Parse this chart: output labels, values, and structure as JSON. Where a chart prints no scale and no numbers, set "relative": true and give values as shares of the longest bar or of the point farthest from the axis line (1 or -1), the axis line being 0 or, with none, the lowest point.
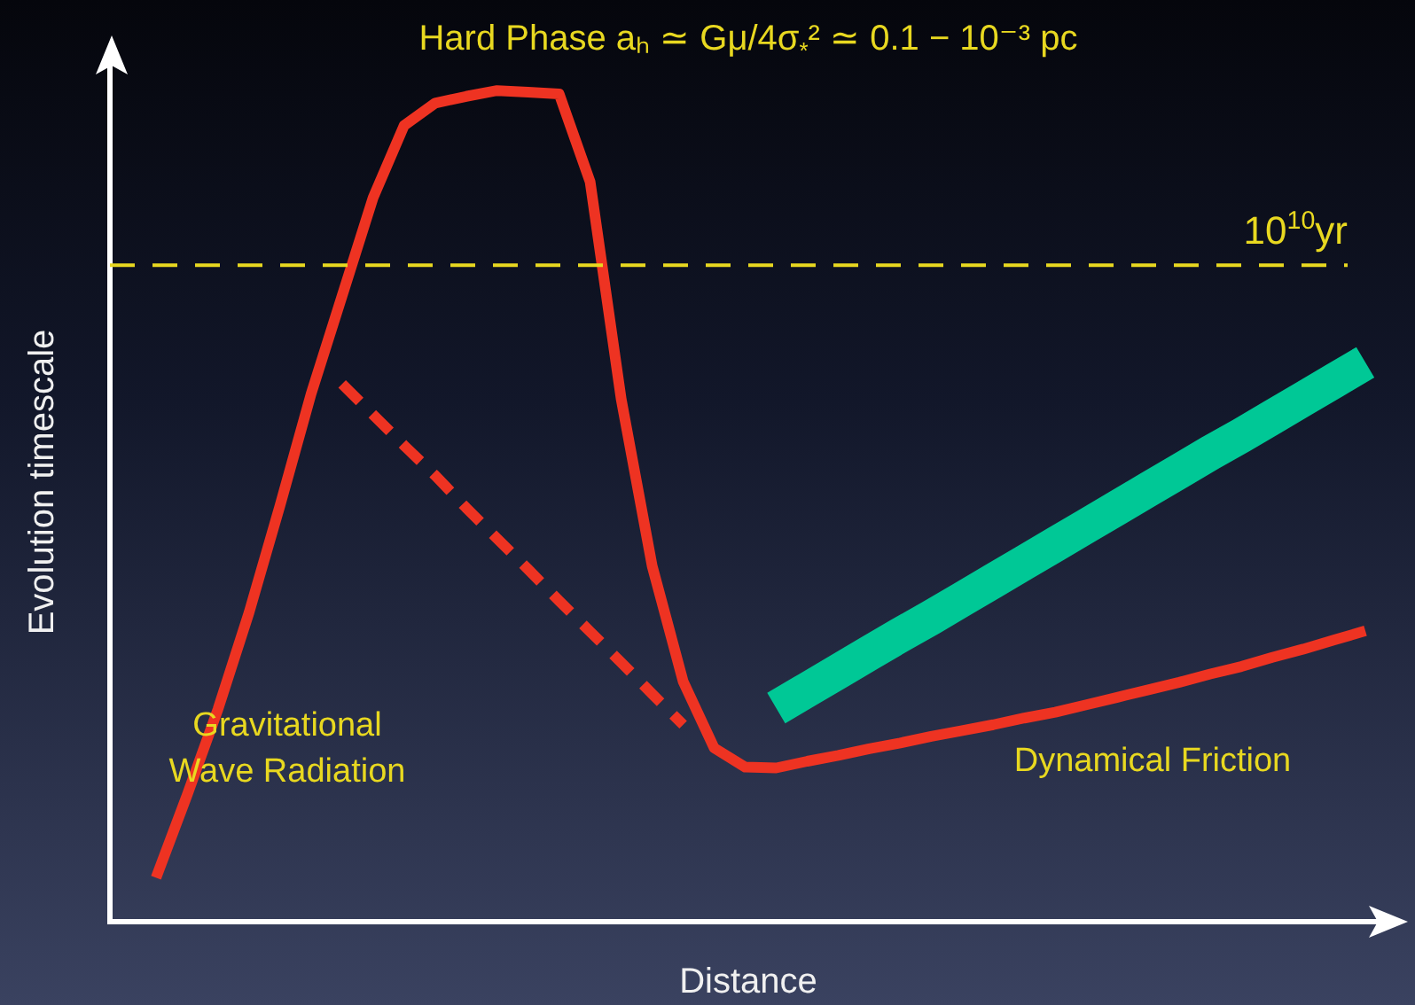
{
  "chart_data": {
    "type": "line",
    "relative": true,
    "title": "Hard Phase aₕ ≃ Gμ/4σ$_{*}$² ≃ 0.1 − 10⁻³ pc",
    "xlabel": "Distance",
    "ylabel": "Evolution timescale",
    "categories": [
      null,
      null,
      null,
      null,
      null,
      null,
      null,
      null,
      null,
      null,
      null,
      null,
      null,
      null,
      null,
      null,
      null,
      null,
      null,
      null,
      null,
      null,
      null,
      null,
      null,
      null,
      null,
      null,
      null,
      null,
      null,
      null,
      null,
      null,
      null,
      null,
      null,
      null,
      null,
      null
    ],
    "series": [
      {
        "color": "#ee3322",
        "values": [
          0.053,
          0.152,
          0.256,
          0.372,
          0.501,
          0.635,
          0.753,
          0.871,
          0.958,
          0.985,
          0.993,
          1,
          0.998,
          0.996,
          0.89,
          0.629,
          0.428,
          0.289,
          0.209,
          0.186,
          0.185,
          0.193,
          0.2,
          0.208,
          0.215,
          0.223,
          0.23,
          0.237,
          0.245,
          0.252,
          0.261,
          0.27,
          0.279,
          0.288,
          0.298,
          0.307,
          0.318,
          0.328,
          0.339,
          0.35
        ]
      },
      {
        "color": "#ee3322",
        "line_style": "dashed",
        "values": [
          null,
          null,
          null,
          null,
          null,
          null,
          0.647,
          0.61,
          0.573,
          0.537,
          0.498,
          0.461,
          0.424,
          0.386,
          0.349,
          0.312,
          0.274,
          0.237,
          null,
          null,
          null,
          null,
          null,
          null,
          null,
          null,
          null,
          null,
          null,
          null,
          null,
          null,
          null,
          null,
          null,
          null,
          null,
          null,
          null,
          null
        ]
      },
      {
        "color": "#00c896",
        "values": [
          null,
          null,
          null,
          null,
          null,
          null,
          null,
          null,
          null,
          null,
          null,
          null,
          null,
          null,
          null,
          null,
          null,
          null,
          null,
          null,
          0.257,
          0.279,
          0.301,
          0.323,
          0.345,
          0.366,
          0.388,
          0.41,
          0.432,
          0.454,
          0.476,
          0.498,
          0.52,
          0.542,
          0.564,
          0.585,
          0.607,
          0.629,
          0.651,
          0.673
        ]
      }
    ],
    "ref_lines": [
      {
        "axis": "y",
        "value": 0.79,
        "label": "10$^{10}$yr",
        "color": "#e8d820",
        "line_style": "dashed"
      }
    ],
    "annotations": [
      "Gravitational\nWave Radiation",
      "Dynamical Friction"
    ],
    "legend": false,
    "marker": "none",
    "line_style": "solid",
    "grid": false
  }
}
